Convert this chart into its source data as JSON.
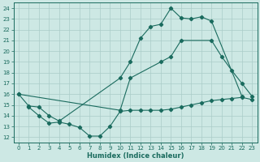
{
  "xlabel": "Humidex (Indice chaleur)",
  "bg_color": "#cde8e4",
  "grid_color": "#aaccc8",
  "line_color": "#1a6b5e",
  "xlim": [
    -0.5,
    23.5
  ],
  "ylim": [
    11.5,
    24.5
  ],
  "xticks": [
    0,
    1,
    2,
    3,
    4,
    5,
    6,
    7,
    8,
    9,
    10,
    11,
    12,
    13,
    14,
    15,
    16,
    17,
    18,
    19,
    20,
    21,
    22,
    23
  ],
  "yticks": [
    12,
    13,
    14,
    15,
    16,
    17,
    18,
    19,
    20,
    21,
    22,
    23,
    24
  ],
  "line_max_x": [
    0,
    1,
    2,
    3,
    4,
    10,
    11,
    12,
    13,
    14,
    15,
    16,
    17,
    18,
    19,
    22
  ],
  "line_max_y": [
    16.0,
    14.9,
    14.8,
    14.0,
    13.5,
    17.5,
    19.0,
    21.2,
    22.3,
    22.5,
    24.0,
    23.1,
    23.0,
    23.2,
    22.8,
    15.8
  ],
  "line_min_x": [
    1,
    2,
    3,
    4,
    5,
    6,
    7,
    8,
    9,
    10,
    11,
    12,
    13,
    14,
    15,
    16,
    17,
    18,
    19,
    20,
    21,
    22,
    23
  ],
  "line_min_y": [
    14.8,
    14.0,
    13.3,
    13.4,
    13.2,
    12.9,
    12.1,
    12.1,
    13.0,
    14.4,
    14.5,
    14.5,
    14.5,
    14.5,
    14.6,
    14.8,
    15.0,
    15.2,
    15.4,
    15.5,
    15.6,
    15.7,
    15.5
  ],
  "line_avg_x": [
    0,
    10,
    11,
    14,
    15,
    16,
    19,
    20,
    21,
    22,
    23
  ],
  "line_avg_y": [
    16.0,
    14.5,
    17.5,
    19.0,
    19.5,
    21.0,
    21.0,
    19.5,
    18.2,
    17.0,
    15.8
  ]
}
